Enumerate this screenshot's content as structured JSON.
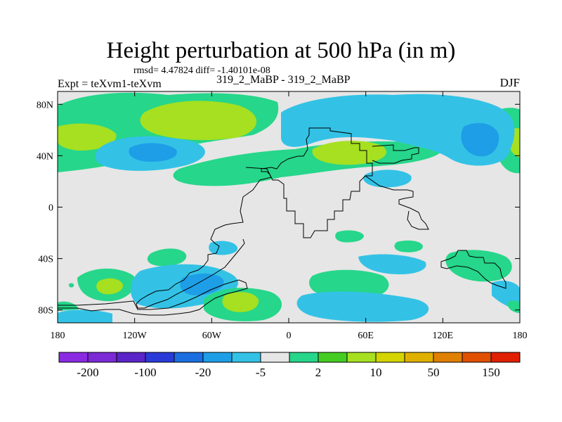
{
  "title": "Height perturbation at 500 hPa (in m)",
  "stats_line": "rmsd= 4.47824 diff= -1.40101e-08",
  "left_label": "Expt = teXvm1-teXvm",
  "center_label": "319_2_MaBP - 319_2_MaBP",
  "right_label": "DJF",
  "map": {
    "lon_range": [
      -180,
      180
    ],
    "lat_range": [
      -90,
      90
    ],
    "background_color": "#e6e6e6",
    "lat_ticks": [
      {
        "value": 80,
        "label": "80N"
      },
      {
        "value": 40,
        "label": "40N"
      },
      {
        "value": 0,
        "label": "0"
      },
      {
        "value": -40,
        "label": "40S"
      },
      {
        "value": -80,
        "label": "80S"
      }
    ],
    "lon_ticks": [
      {
        "value": -180,
        "label": "180"
      },
      {
        "value": -120,
        "label": "120W"
      },
      {
        "value": -60,
        "label": "60W"
      },
      {
        "value": 0,
        "label": "0"
      },
      {
        "value": 60,
        "label": "60E"
      },
      {
        "value": 120,
        "label": "120E"
      },
      {
        "value": 180,
        "label": "180"
      }
    ]
  },
  "colorbar": {
    "colors": [
      "#8a2be2",
      "#7b2ad6",
      "#5a24c8",
      "#2a3ad8",
      "#1a6ee0",
      "#1e9ee6",
      "#33c2e6",
      "#e6e6e6",
      "#26d68a",
      "#44cc22",
      "#a6e020",
      "#d4d400",
      "#e0b000",
      "#e08000",
      "#e05000",
      "#e02000"
    ],
    "labels": [
      {
        "index": 1,
        "text": "-200"
      },
      {
        "index": 3,
        "text": "-100"
      },
      {
        "index": 5,
        "text": "-20"
      },
      {
        "index": 7,
        "text": "-5"
      },
      {
        "index": 9,
        "text": "2"
      },
      {
        "index": 11,
        "text": "10"
      },
      {
        "index": 13,
        "text": "50"
      },
      {
        "index": 15,
        "text": "150"
      }
    ]
  }
}
